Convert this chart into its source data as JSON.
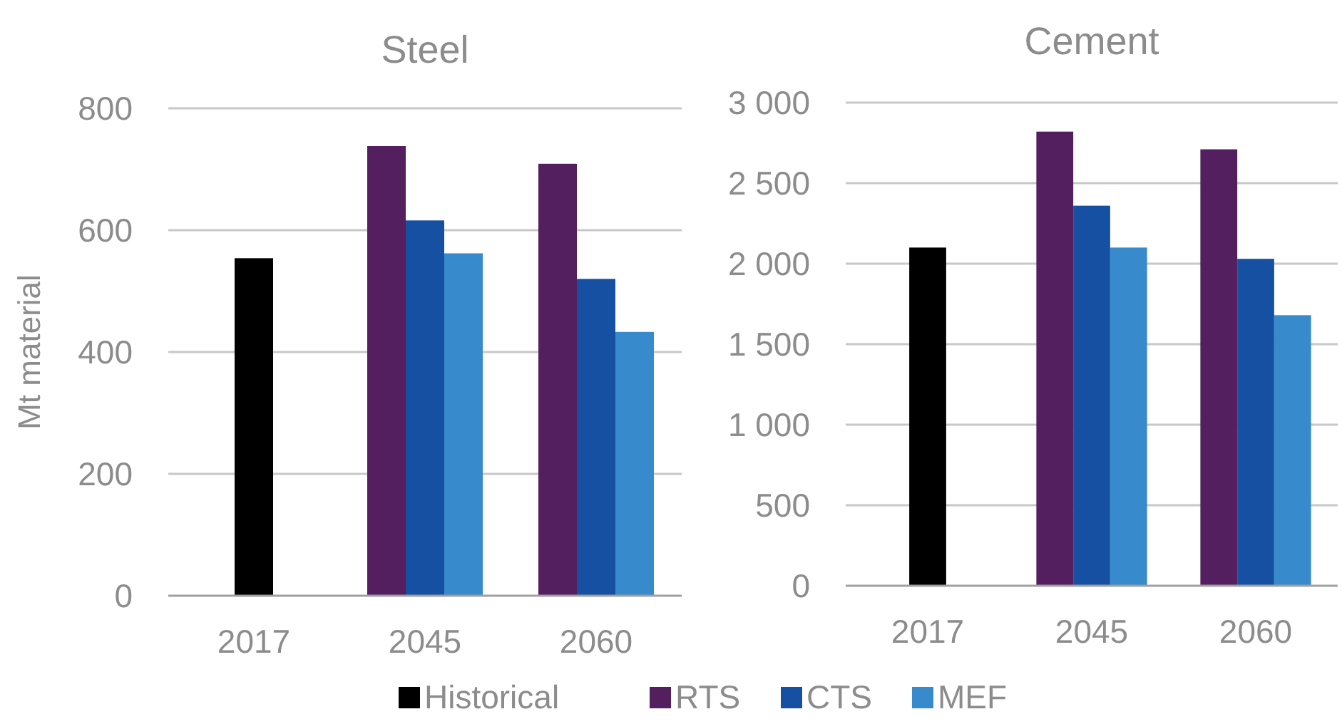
{
  "chart_data": [
    {
      "type": "bar",
      "title": "Steel",
      "ylabel": "Mt material",
      "categories": [
        "2017",
        "2045",
        "2060"
      ],
      "series": [
        {
          "name": "Historical",
          "color": "#000000",
          "values": [
            554,
            null,
            null
          ]
        },
        {
          "name": "RTS",
          "color": "#541f5e",
          "values": [
            null,
            738,
            709
          ]
        },
        {
          "name": "CTS",
          "color": "#1550a2",
          "values": [
            null,
            616,
            520
          ]
        },
        {
          "name": "MEF",
          "color": "#378acb",
          "values": [
            null,
            562,
            433
          ]
        }
      ],
      "ylim": [
        0,
        800
      ],
      "yticks": [
        0,
        200,
        400,
        600,
        800
      ],
      "grid": "y",
      "legend": "bottom"
    },
    {
      "type": "bar",
      "title": "Cement",
      "categories": [
        "2017",
        "2045",
        "2060"
      ],
      "series": [
        {
          "name": "Historical",
          "color": "#000000",
          "values": [
            2100,
            null,
            null
          ]
        },
        {
          "name": "RTS",
          "color": "#541f5e",
          "values": [
            null,
            2820,
            2710
          ]
        },
        {
          "name": "CTS",
          "color": "#1550a2",
          "values": [
            null,
            2360,
            2030
          ]
        },
        {
          "name": "MEF",
          "color": "#378acb",
          "values": [
            null,
            2100,
            1680
          ]
        }
      ],
      "ylim": [
        0,
        3000
      ],
      "yticks": [
        0,
        {
          "value": 500,
          "label": "500"
        },
        {
          "value": 1000,
          "label": "1 000"
        },
        {
          "value": 1500,
          "label": "1 500"
        },
        {
          "value": 2000,
          "label": "2 000"
        },
        {
          "value": 2500,
          "label": "2 500"
        },
        {
          "value": 3000,
          "label": "3 000"
        }
      ],
      "grid": "y",
      "legend": "bottom"
    }
  ]
}
